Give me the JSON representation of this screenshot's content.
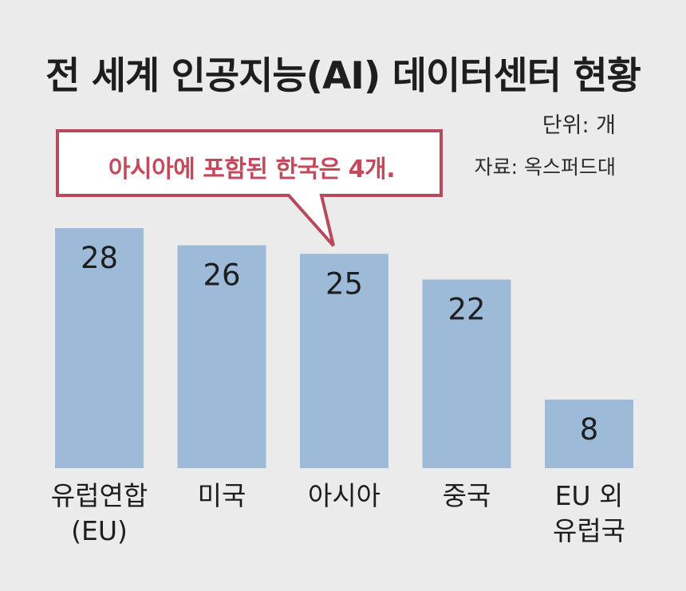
{
  "title": "전 세계 인공지능(AI) 데이터센터 현황",
  "unit_note": "단위: 개",
  "source_note": "자료: 옥스퍼드대",
  "callout": {
    "text": "아시아에 포함된 한국은 4개.",
    "border_color": "#b84a5e",
    "text_color": "#c24a5c"
  },
  "colors": {
    "background": "#ebebeb",
    "bar": "#9dbad8",
    "text": "#1e1e1e"
  },
  "chart_data": {
    "type": "bar",
    "title": "전 세계 인공지능(AI) 데이터센터 현황",
    "categories": [
      "유럽연합\n(EU)",
      "미국",
      "아시아",
      "중국",
      "EU 외\n유럽국"
    ],
    "values": [
      28,
      26,
      25,
      22,
      8
    ],
    "data_labels": [
      "28",
      "26",
      "25",
      "22",
      "8"
    ],
    "ylim": [
      0,
      28
    ],
    "grid": false,
    "legend": "none"
  }
}
